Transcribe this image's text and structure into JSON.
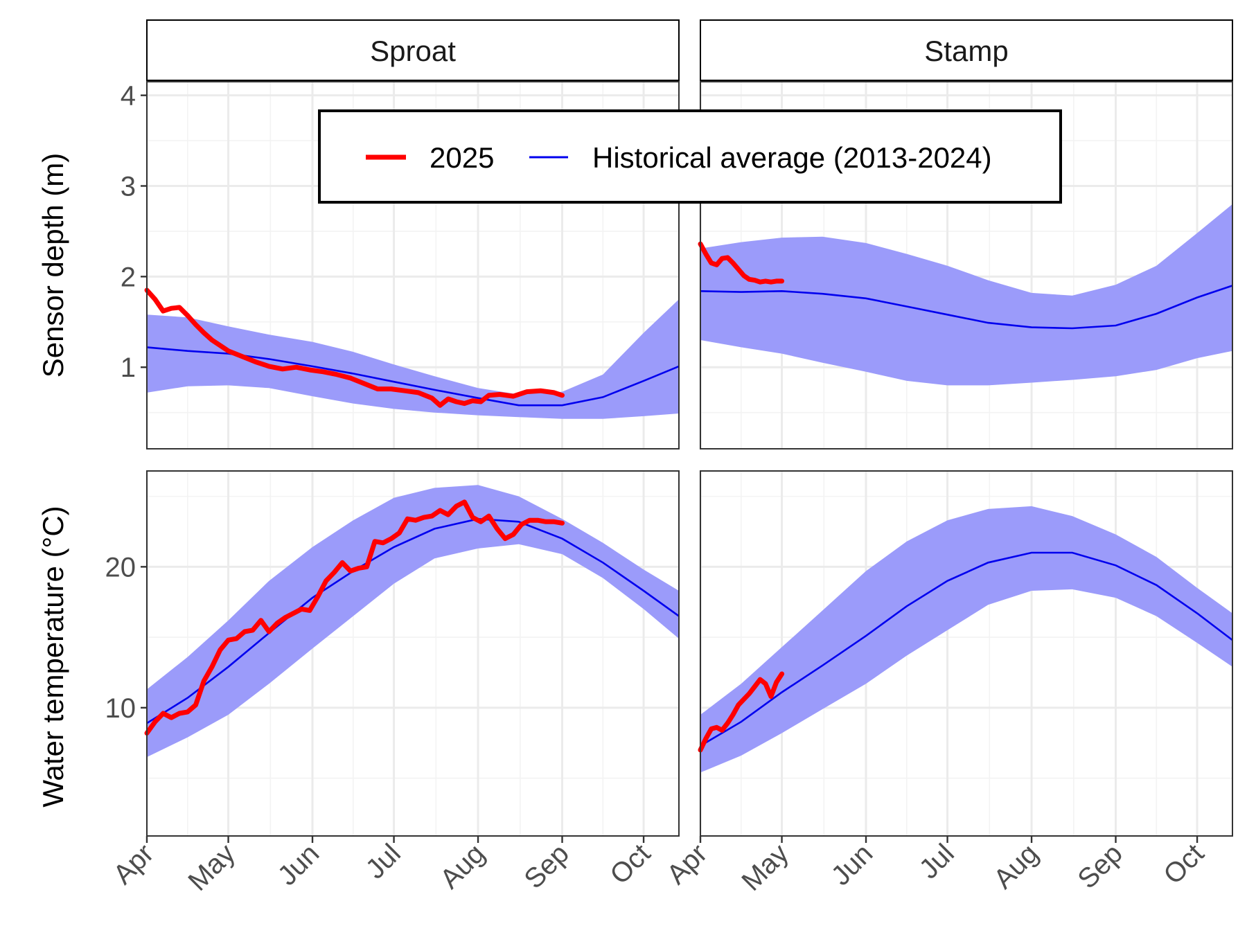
{
  "chart_data": {
    "type": "line",
    "facets": {
      "columns": [
        "Sproat",
        "Stamp"
      ],
      "rows": [
        "Sensor depth (m)",
        "Water temperature (°C)"
      ]
    },
    "x_tick_labels": [
      "Apr",
      "May",
      "Jun",
      "Jul",
      "Aug",
      "Sep",
      "Oct"
    ],
    "x_tick_day": [
      0,
      30,
      61,
      91,
      122,
      153,
      183
    ],
    "xlim_day": [
      0,
      196
    ],
    "rows": [
      {
        "ylabel": "Sensor depth (m)",
        "ylim": [
          0.1,
          4.15
        ],
        "y_ticks": [
          1,
          2,
          3,
          4
        ],
        "y_tick_labels": [
          "1",
          "2",
          "3",
          "4"
        ]
      },
      {
        "ylabel": "Water temperature (°C)",
        "ylim": [
          0.9,
          26.8
        ],
        "y_ticks": [
          10,
          20
        ],
        "y_tick_labels": [
          "10",
          "20"
        ]
      }
    ],
    "legend": {
      "position": "top-center",
      "entries": [
        {
          "label": "2025",
          "color": "#ff0000"
        },
        {
          "label": "Historical average (2013-2024)",
          "color": "#0000ee"
        }
      ]
    },
    "colors": {
      "current": "#ff0000",
      "average": "#0000ee",
      "band": "#9b9bfa"
    },
    "panels": [
      {
        "column": "Sproat",
        "variable": "Sensor depth (m)",
        "average": {
          "x": [
            0,
            15,
            30,
            45,
            61,
            76,
            91,
            106,
            122,
            137,
            153,
            168,
            183,
            196
          ],
          "y": [
            1.22,
            1.18,
            1.15,
            1.09,
            1.01,
            0.93,
            0.84,
            0.75,
            0.66,
            0.58,
            0.58,
            0.67,
            0.85,
            1.01
          ]
        },
        "band": {
          "x": [
            0,
            15,
            30,
            45,
            61,
            76,
            91,
            106,
            122,
            137,
            153,
            168,
            183,
            196
          ],
          "lower": [
            0.72,
            0.79,
            0.8,
            0.77,
            0.68,
            0.6,
            0.54,
            0.5,
            0.47,
            0.45,
            0.43,
            0.43,
            0.46,
            0.49
          ],
          "upper": [
            1.58,
            1.55,
            1.45,
            1.36,
            1.28,
            1.17,
            1.03,
            0.9,
            0.77,
            0.7,
            0.73,
            0.92,
            1.38,
            1.75
          ]
        },
        "current_2025": {
          "x": [
            0,
            3,
            6,
            9,
            12,
            15,
            18,
            21,
            24,
            27,
            30,
            35,
            40,
            45,
            50,
            55,
            60,
            65,
            70,
            75,
            80,
            85,
            90,
            95,
            100,
            105,
            108,
            111,
            114,
            117,
            120,
            123,
            126,
            130,
            135,
            140,
            145,
            150,
            153
          ],
          "y": [
            1.85,
            1.75,
            1.62,
            1.65,
            1.66,
            1.57,
            1.47,
            1.38,
            1.3,
            1.24,
            1.18,
            1.12,
            1.06,
            1.01,
            0.98,
            1.0,
            0.97,
            0.95,
            0.92,
            0.88,
            0.82,
            0.76,
            0.76,
            0.74,
            0.72,
            0.66,
            0.58,
            0.65,
            0.62,
            0.6,
            0.63,
            0.62,
            0.69,
            0.7,
            0.68,
            0.73,
            0.74,
            0.72,
            0.69
          ]
        }
      },
      {
        "column": "Stamp",
        "variable": "Sensor depth (m)",
        "average": {
          "x": [
            0,
            15,
            30,
            45,
            61,
            76,
            91,
            106,
            122,
            137,
            153,
            168,
            183,
            196
          ],
          "y": [
            1.84,
            1.83,
            1.84,
            1.81,
            1.76,
            1.67,
            1.58,
            1.49,
            1.44,
            1.43,
            1.46,
            1.59,
            1.77,
            1.9
          ]
        },
        "band": {
          "x": [
            0,
            15,
            30,
            45,
            61,
            76,
            91,
            106,
            122,
            137,
            153,
            168,
            183,
            196
          ],
          "lower": [
            1.3,
            1.22,
            1.15,
            1.05,
            0.95,
            0.85,
            0.8,
            0.8,
            0.83,
            0.86,
            0.9,
            0.97,
            1.1,
            1.18
          ],
          "upper": [
            2.31,
            2.38,
            2.43,
            2.44,
            2.37,
            2.25,
            2.12,
            1.96,
            1.82,
            1.79,
            1.91,
            2.12,
            2.48,
            2.8
          ]
        },
        "current_2025": {
          "x": [
            0,
            2,
            4,
            6,
            8,
            10,
            12,
            14,
            16,
            18,
            20,
            22,
            24,
            26,
            28,
            30
          ],
          "y": [
            2.36,
            2.25,
            2.15,
            2.13,
            2.2,
            2.21,
            2.15,
            2.08,
            2.01,
            1.97,
            1.96,
            1.94,
            1.95,
            1.94,
            1.95,
            1.95
          ]
        }
      },
      {
        "column": "Sproat",
        "variable": "Water temperature (°C)",
        "average": {
          "x": [
            0,
            15,
            30,
            45,
            61,
            76,
            91,
            106,
            122,
            137,
            153,
            168,
            183,
            196
          ],
          "y": [
            8.9,
            10.7,
            12.9,
            15.3,
            17.8,
            19.7,
            21.4,
            22.7,
            23.4,
            23.2,
            22.0,
            20.3,
            18.3,
            16.5
          ]
        },
        "band": {
          "x": [
            0,
            15,
            30,
            45,
            61,
            76,
            91,
            106,
            122,
            137,
            153,
            168,
            183,
            196
          ],
          "lower": [
            6.5,
            7.9,
            9.5,
            11.7,
            14.2,
            16.5,
            18.8,
            20.6,
            21.3,
            21.6,
            20.9,
            19.2,
            17.0,
            14.9
          ],
          "upper": [
            11.3,
            13.6,
            16.2,
            19.0,
            21.4,
            23.3,
            24.9,
            25.6,
            25.8,
            25.0,
            23.4,
            21.7,
            19.8,
            18.3
          ]
        },
        "current_2025": {
          "x": [
            0,
            3,
            6,
            9,
            12,
            15,
            18,
            21,
            24,
            27,
            30,
            33,
            36,
            39,
            42,
            45,
            48,
            51,
            54,
            57,
            60,
            63,
            66,
            69,
            72,
            75,
            78,
            81,
            84,
            87,
            90,
            93,
            96,
            99,
            102,
            105,
            108,
            111,
            114,
            117,
            120,
            123,
            126,
            129,
            132,
            135,
            138,
            141,
            144,
            147,
            150,
            153
          ],
          "y": [
            8.2,
            9.0,
            9.6,
            9.3,
            9.6,
            9.7,
            10.2,
            11.9,
            12.9,
            14.1,
            14.8,
            14.9,
            15.4,
            15.5,
            16.2,
            15.4,
            16.0,
            16.4,
            16.7,
            17.0,
            16.9,
            17.9,
            19.0,
            19.6,
            20.3,
            19.7,
            19.9,
            20.0,
            21.8,
            21.7,
            22.0,
            22.4,
            23.4,
            23.3,
            23.5,
            23.6,
            24.0,
            23.7,
            24.3,
            24.6,
            23.5,
            23.2,
            23.6,
            22.7,
            22.0,
            22.3,
            23.0,
            23.3,
            23.3,
            23.2,
            23.2,
            23.1
          ]
        }
      },
      {
        "column": "Stamp",
        "variable": "Water temperature (°C)",
        "average": {
          "x": [
            0,
            15,
            30,
            45,
            61,
            76,
            91,
            106,
            122,
            137,
            153,
            168,
            183,
            196
          ],
          "y": [
            7.3,
            9.0,
            11.1,
            13.0,
            15.1,
            17.2,
            19.0,
            20.3,
            21.0,
            21.0,
            20.1,
            18.7,
            16.7,
            14.8
          ]
        },
        "band": {
          "x": [
            0,
            15,
            30,
            45,
            61,
            76,
            91,
            106,
            122,
            137,
            153,
            168,
            183,
            196
          ],
          "lower": [
            5.4,
            6.6,
            8.2,
            9.9,
            11.7,
            13.7,
            15.5,
            17.3,
            18.3,
            18.4,
            17.8,
            16.5,
            14.6,
            12.9
          ],
          "upper": [
            9.5,
            11.7,
            14.3,
            16.9,
            19.7,
            21.8,
            23.3,
            24.1,
            24.3,
            23.6,
            22.3,
            20.7,
            18.5,
            16.7
          ]
        },
        "current_2025": {
          "x": [
            0,
            2,
            4,
            6,
            8,
            10,
            12,
            14,
            16,
            18,
            20,
            22,
            24,
            26,
            28,
            30
          ],
          "y": [
            7.0,
            7.8,
            8.5,
            8.6,
            8.4,
            8.9,
            9.5,
            10.2,
            10.6,
            11.0,
            11.5,
            12.0,
            11.7,
            10.8,
            11.8,
            12.4
          ]
        }
      }
    ]
  }
}
